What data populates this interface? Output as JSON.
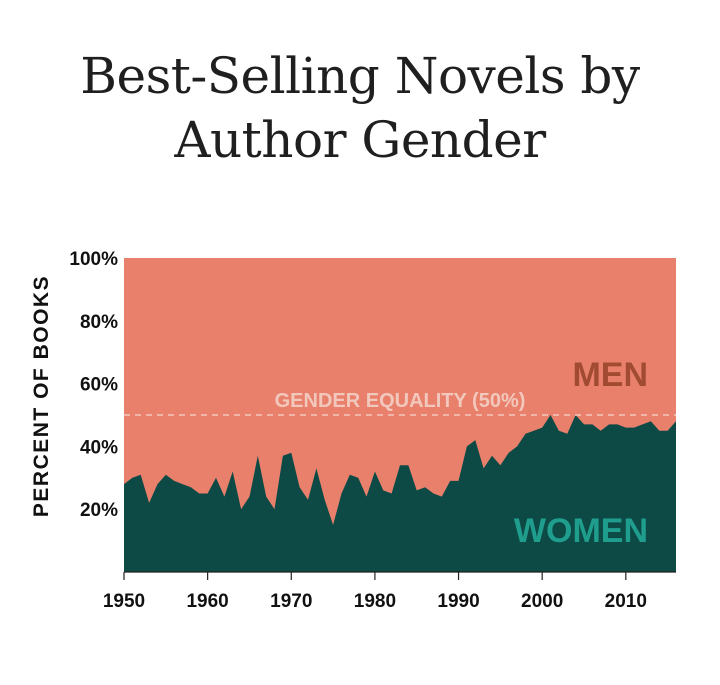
{
  "chart_data": {
    "type": "area",
    "title_lines": [
      "Best-Selling Novels by",
      "Author Gender"
    ],
    "ylabel": "PERCENT OF BOOKS",
    "xlabel": "",
    "xlim": [
      1950,
      2016
    ],
    "ylim": [
      0,
      100
    ],
    "x_ticks": [
      1950,
      1960,
      1970,
      1980,
      1990,
      2000,
      2010
    ],
    "x_tick_labels": [
      "1950",
      "1960",
      "1970",
      "1980",
      "1990",
      "2000",
      "2010"
    ],
    "y_ticks": [
      20,
      40,
      60,
      80,
      100
    ],
    "y_tick_labels": [
      "20%",
      "40%",
      "60%",
      "80%",
      "100%"
    ],
    "series": [
      {
        "name": "WOMEN",
        "color": "#0d4a45",
        "label_color": "#1f9e8e",
        "x": [
          1950,
          1951,
          1952,
          1953,
          1954,
          1955,
          1956,
          1957,
          1958,
          1959,
          1960,
          1961,
          1962,
          1963,
          1964,
          1965,
          1966,
          1967,
          1968,
          1969,
          1970,
          1971,
          1972,
          1973,
          1974,
          1975,
          1976,
          1977,
          1978,
          1979,
          1980,
          1981,
          1982,
          1983,
          1984,
          1985,
          1986,
          1987,
          1988,
          1989,
          1990,
          1991,
          1992,
          1993,
          1994,
          1995,
          1996,
          1997,
          1998,
          1999,
          2000,
          2001,
          2002,
          2003,
          2004,
          2005,
          2006,
          2007,
          2008,
          2009,
          2010,
          2011,
          2012,
          2013,
          2014,
          2015,
          2016
        ],
        "values": [
          28,
          30,
          31,
          22,
          28,
          31,
          29,
          28,
          27,
          25,
          25,
          30,
          24,
          32,
          20,
          24,
          37,
          24,
          20,
          37,
          38,
          27,
          23,
          33,
          23,
          15,
          25,
          31,
          30,
          24,
          32,
          26,
          25,
          34,
          34,
          26,
          27,
          25,
          24,
          29,
          29,
          40,
          42,
          33,
          37,
          34,
          38,
          40,
          44,
          45,
          46,
          50,
          45,
          44,
          50,
          47,
          47,
          45,
          47,
          47,
          46,
          46,
          47,
          48,
          45,
          45,
          48
        ]
      },
      {
        "name": "MEN",
        "color": "#e8806c",
        "label_color": "#a24b33"
      }
    ],
    "reference_line": {
      "y": 50,
      "label": "GENDER EQUALITY (50%)",
      "color": "#f2c8bd"
    },
    "grid": false,
    "legend": "inline"
  }
}
